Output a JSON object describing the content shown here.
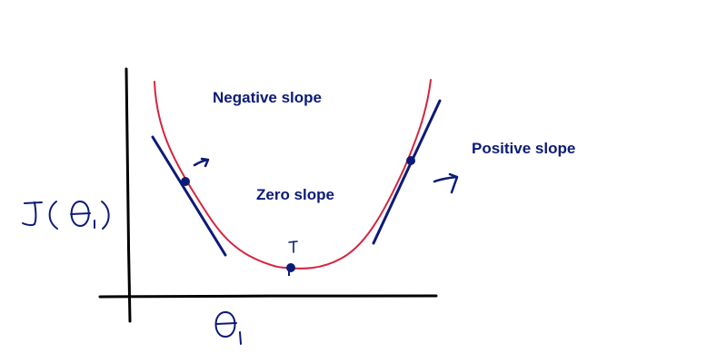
{
  "labels": {
    "negative": "Negative slope",
    "zero": "Zero slope",
    "positive": "Positive slope"
  },
  "colors": {
    "axis": "#000000",
    "curve": "#d4243f",
    "ink": "#0c1a78",
    "label": "#0c1a78",
    "background": "#ffffff"
  },
  "handwriting": {
    "y_axis_label": "J(θ₁)",
    "x_axis_label": "θ₁"
  }
}
